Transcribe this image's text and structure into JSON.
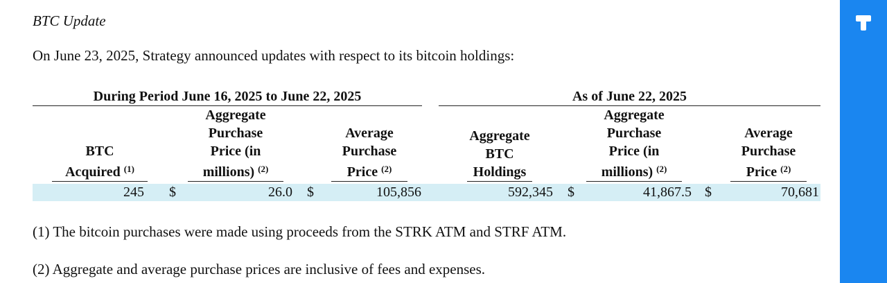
{
  "document": {
    "heading": "BTC Update",
    "intro": "On June 23, 2025, Strategy announced updates with respect to its bitcoin holdings:"
  },
  "table": {
    "group_period": "During Period June 16, 2025 to June 22, 2025",
    "group_asof": "As of June 22, 2025",
    "columns": [
      {
        "lines": [
          "BTC",
          "Acquired"
        ],
        "footnote": "(1)"
      },
      {
        "lines": [
          "Aggregate",
          "Purchase",
          "Price (in",
          "millions)"
        ],
        "footnote": "(2)"
      },
      {
        "lines": [
          "Average",
          "Purchase",
          "Price"
        ],
        "footnote": "(2)"
      },
      {
        "lines": [
          "Aggregate",
          "BTC",
          "Holdings"
        ],
        "footnote": ""
      },
      {
        "lines": [
          "Aggregate",
          "Purchase",
          "Price (in",
          "millions)"
        ],
        "footnote": "(2)"
      },
      {
        "lines": [
          "Average",
          "Purchase",
          "Price"
        ],
        "footnote": "(2)"
      }
    ],
    "row": {
      "btc_acquired": "245",
      "agg_price_currency": "$",
      "agg_price_millions": "26.0",
      "avg_price_currency": "$",
      "avg_price": "105,856",
      "btc_holdings": "592,345",
      "agg_price2_currency": "$",
      "agg_price2_millions": "41,867.5",
      "avg_price2_currency": "$",
      "avg_price2": "70,681"
    },
    "highlight_color": "#d5eef5"
  },
  "footnotes": {
    "note1": "(1) The bitcoin purchases were made using proceeds from the STRK ATM and STRF ATM.",
    "note2": "(2) Aggregate and average purchase prices are inclusive of fees and expenses."
  },
  "side_panel": {
    "color": "#1a86f0",
    "icon": "logo-icon"
  }
}
